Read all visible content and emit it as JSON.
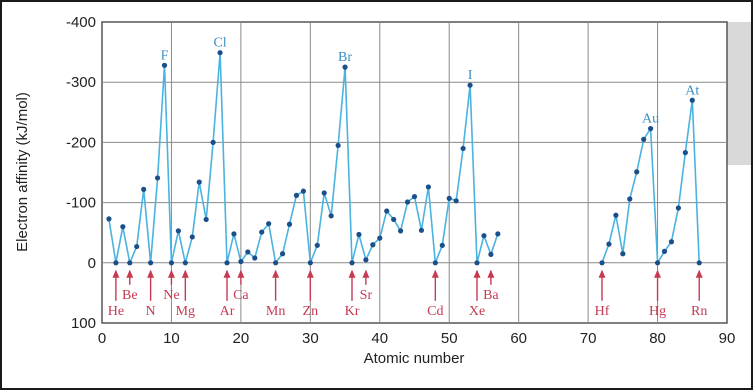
{
  "chart_data": {
    "type": "line",
    "xlabel": "Atomic number",
    "ylabel": "Electron affinity (kJ/mol)",
    "xlim": [
      0,
      90
    ],
    "ylim": [
      -400,
      100
    ],
    "y_axis_inverted": true,
    "x_ticks": [
      0,
      10,
      20,
      30,
      40,
      50,
      60,
      70,
      80,
      90
    ],
    "y_ticks": [
      {
        "value": -400,
        "label": "-400"
      },
      {
        "value": -300,
        "label": "-300"
      },
      {
        "value": -200,
        "label": "-200"
      },
      {
        "value": -100,
        "label": "-100"
      },
      {
        "value": 0,
        "label": "0"
      },
      {
        "value": 100,
        "label": "100"
      }
    ],
    "grid": true,
    "line_color": "#4ab3e0",
    "marker_color": "#1a4f8a",
    "label_color_peaks": "#3a8fc4",
    "label_color_zero": "#c63a52",
    "series": [
      {
        "points": [
          [
            1,
            -73
          ],
          [
            2,
            0
          ],
          [
            3,
            -60
          ],
          [
            4,
            0
          ],
          [
            5,
            -27
          ],
          [
            6,
            -122
          ],
          [
            7,
            0
          ],
          [
            8,
            -141
          ],
          [
            9,
            -328
          ],
          [
            10,
            0
          ],
          [
            11,
            -53
          ],
          [
            12,
            0
          ],
          [
            13,
            -43
          ],
          [
            14,
            -134
          ],
          [
            15,
            -72
          ],
          [
            16,
            -200
          ],
          [
            17,
            -349
          ],
          [
            18,
            0
          ],
          [
            19,
            -48
          ],
          [
            20,
            -2
          ],
          [
            21,
            -18
          ],
          [
            22,
            -8
          ],
          [
            23,
            -51
          ],
          [
            24,
            -65
          ],
          [
            25,
            0
          ],
          [
            26,
            -15
          ],
          [
            27,
            -64
          ],
          [
            28,
            -112
          ],
          [
            29,
            -119
          ],
          [
            30,
            0
          ],
          [
            31,
            -29
          ],
          [
            32,
            -116
          ],
          [
            33,
            -78
          ],
          [
            34,
            -195
          ],
          [
            35,
            -325
          ],
          [
            36,
            0
          ],
          [
            37,
            -47
          ],
          [
            38,
            -5
          ],
          [
            39,
            -30
          ],
          [
            40,
            -41
          ],
          [
            41,
            -86
          ],
          [
            42,
            -72
          ],
          [
            43,
            -53
          ],
          [
            44,
            -101
          ],
          [
            45,
            -110
          ],
          [
            46,
            -54
          ],
          [
            47,
            -126
          ],
          [
            48,
            0
          ],
          [
            49,
            -29
          ],
          [
            50,
            -107
          ],
          [
            51,
            -103
          ],
          [
            52,
            -190
          ],
          [
            53,
            -295
          ],
          [
            54,
            0
          ],
          [
            55,
            -45
          ],
          [
            56,
            -14
          ],
          [
            57,
            -48
          ]
        ]
      },
      {
        "points": [
          [
            72,
            0
          ],
          [
            73,
            -31
          ],
          [
            74,
            -79
          ],
          [
            75,
            -15
          ],
          [
            76,
            -106
          ],
          [
            77,
            -151
          ],
          [
            78,
            -205
          ],
          [
            79,
            -223
          ],
          [
            80,
            0
          ],
          [
            81,
            -19
          ],
          [
            82,
            -35
          ],
          [
            83,
            -91
          ],
          [
            84,
            -183
          ],
          [
            85,
            -270
          ],
          [
            86,
            0
          ]
        ]
      }
    ],
    "peak_labels": [
      {
        "text": "F",
        "x": 9,
        "y": -328
      },
      {
        "text": "Cl",
        "x": 17,
        "y": -349
      },
      {
        "text": "Br",
        "x": 35,
        "y": -325
      },
      {
        "text": "I",
        "x": 53,
        "y": -295
      },
      {
        "text": "Au",
        "x": 79,
        "y": -223
      },
      {
        "text": "At",
        "x": 85,
        "y": -270
      }
    ],
    "zero_labels": [
      {
        "text": "He",
        "x": 2,
        "tier": 2
      },
      {
        "text": "Be",
        "x": 4,
        "tier": 1
      },
      {
        "text": "N",
        "x": 7,
        "tier": 2
      },
      {
        "text": "Ne",
        "x": 10,
        "tier": 1
      },
      {
        "text": "Mg",
        "x": 12,
        "tier": 2
      },
      {
        "text": "Ar",
        "x": 18,
        "tier": 2
      },
      {
        "text": "Ca",
        "x": 20,
        "tier": 1
      },
      {
        "text": "Mn",
        "x": 25,
        "tier": 2
      },
      {
        "text": "Zn",
        "x": 30,
        "tier": 2
      },
      {
        "text": "Kr",
        "x": 36,
        "tier": 2
      },
      {
        "text": "Sr",
        "x": 38,
        "tier": 1
      },
      {
        "text": "Cd",
        "x": 48,
        "tier": 2
      },
      {
        "text": "Xe",
        "x": 54,
        "tier": 2
      },
      {
        "text": "Ba",
        "x": 56,
        "tier": 1
      },
      {
        "text": "Hf",
        "x": 72,
        "tier": 2
      },
      {
        "text": "Hg",
        "x": 80,
        "tier": 2
      },
      {
        "text": "Rn",
        "x": 86,
        "tier": 2
      }
    ]
  }
}
